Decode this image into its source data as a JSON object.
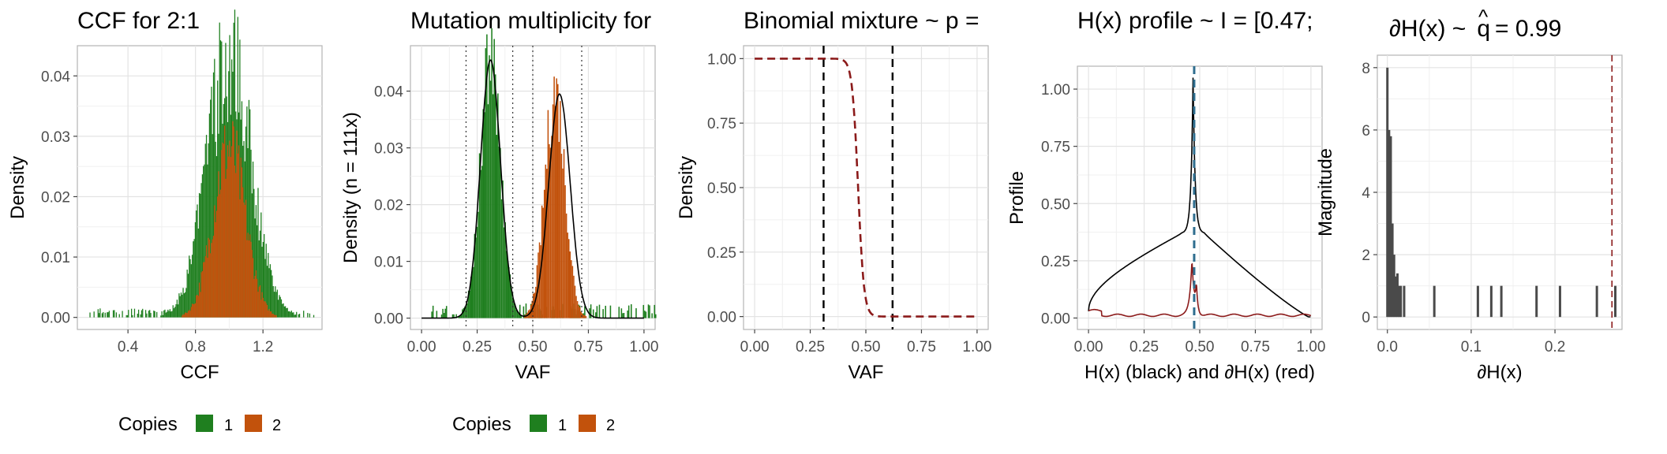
{
  "colors": {
    "copies_1": "#1f7f1f",
    "copies_2": "#c2520c",
    "dashed_red": "#8b1a1a",
    "dashed_blue": "#2f6e8f",
    "bars_dark": "#4a4a4a"
  },
  "legend": {
    "title": "Copies",
    "labels": [
      "1",
      "2"
    ]
  },
  "chart_data": [
    {
      "type": "bar",
      "title": "CCF for 2:1",
      "xlabel": "CCF",
      "ylabel": "Density",
      "xlim": [
        0.1,
        1.55
      ],
      "ylim": [
        -0.002,
        0.045
      ],
      "x_ticks": [
        0.4,
        0.8,
        1.2
      ],
      "x_tick_labels": [
        "0.4",
        "0.8",
        "1.2"
      ],
      "y_ticks": [
        0,
        0.01,
        0.02,
        0.03,
        0.04
      ],
      "y_tick_labels": [
        "0.00",
        "0.01",
        "0.02",
        "0.03",
        "0.04"
      ],
      "grid": true,
      "legend": "bottom",
      "series": [
        {
          "name": "1",
          "center": 1.0,
          "sd": 0.13,
          "peak": 0.043,
          "tail_from": 0.17,
          "tail_to": 1.5,
          "tail_level": 0.0012
        },
        {
          "name": "2",
          "center": 1.0,
          "sd": 0.095,
          "peak": 0.028
        }
      ]
    },
    {
      "type": "bar",
      "title": "Mutation multiplicity for",
      "xlabel": "VAF",
      "ylabel": "Density (n = 111x)",
      "xlim": [
        -0.05,
        1.05
      ],
      "ylim": [
        -0.002,
        0.048
      ],
      "x_ticks": [
        0,
        0.25,
        0.5,
        0.75,
        1.0
      ],
      "x_tick_labels": [
        "0.00",
        "0.25",
        "0.50",
        "0.75",
        "1.00"
      ],
      "y_ticks": [
        0,
        0.01,
        0.02,
        0.03,
        0.04
      ],
      "y_tick_labels": [
        "0.00",
        "0.01",
        "0.02",
        "0.03",
        "0.04"
      ],
      "grid": true,
      "legend": "bottom",
      "vlines_dotted": [
        0.2,
        0.41,
        0.5,
        0.72
      ],
      "series": [
        {
          "name": "1",
          "center": 0.31,
          "sd": 0.045,
          "peak": 0.046,
          "tail_from": 0.04,
          "tail_level": 0.002
        },
        {
          "name": "2",
          "center": 0.6,
          "sd": 0.045,
          "peak": 0.04
        }
      ],
      "fit": [
        {
          "mu": 0.31,
          "sd": 0.045,
          "peak": 0.0455
        },
        {
          "mu": 0.62,
          "sd": 0.048,
          "peak": 0.0395
        }
      ]
    },
    {
      "type": "line",
      "title": "Binomial mixture ~ p =",
      "xlabel": "VAF",
      "ylabel": "Density",
      "xlim": [
        -0.05,
        1.05
      ],
      "ylim": [
        -0.05,
        1.05
      ],
      "x_ticks": [
        0,
        0.25,
        0.5,
        0.75,
        1.0
      ],
      "x_tick_labels": [
        "0.00",
        "0.25",
        "0.50",
        "0.75",
        "1.00"
      ],
      "y_ticks": [
        0,
        0.25,
        0.5,
        0.75,
        1.0
      ],
      "y_tick_labels": [
        "0.00",
        "0.25",
        "0.50",
        "0.75",
        "1.00"
      ],
      "grid": true,
      "vlines_dashed": [
        0.31,
        0.62
      ],
      "sigmoid": {
        "mid": 0.465,
        "steep": 75
      }
    },
    {
      "type": "line",
      "title": "H(x) profile ~ I = [0.47;",
      "xlabel": "H(x) (black) and ∂H(x) (red)",
      "ylabel": "Profile",
      "xlim": [
        -0.05,
        1.05
      ],
      "ylim": [
        -0.05,
        1.1
      ],
      "x_ticks": [
        0,
        0.25,
        0.5,
        0.75,
        1.0
      ],
      "x_tick_labels": [
        "0.00",
        "0.25",
        "0.50",
        "0.75",
        "1.00"
      ],
      "y_ticks": [
        0,
        0.25,
        0.5,
        0.75,
        1.0
      ],
      "y_tick_labels": [
        "0.00",
        "0.25",
        "0.50",
        "0.75",
        "1.00"
      ],
      "grid": true,
      "vline_blue": 0.475,
      "peak_x": 0.47,
      "peak_y": 1.05,
      "plateau_y": 0.37,
      "red_peak_y": 0.26
    },
    {
      "type": "bar",
      "title_prefix": "∂H(x) ~",
      "title_q": "q",
      "title_hat": "^",
      "title_value": "= 0.99",
      "xlabel": "∂H(x)",
      "ylabel": "Magnitude",
      "xlim": [
        -0.012,
        0.28
      ],
      "ylim": [
        -0.4,
        8.4
      ],
      "x_ticks": [
        0,
        0.1,
        0.2
      ],
      "x_tick_labels": [
        "0.0",
        "0.1",
        "0.2"
      ],
      "y_ticks": [
        0,
        2,
        4,
        6,
        8
      ],
      "y_tick_labels": [
        "0",
        "2",
        "4",
        "6",
        "8"
      ],
      "grid": true,
      "vline_dashed": 0.268,
      "bars": [
        {
          "x": 0.0,
          "y": 8
        },
        {
          "x": 0.002,
          "y": 6
        },
        {
          "x": 0.004,
          "y": 5.8
        },
        {
          "x": 0.006,
          "y": 3
        },
        {
          "x": 0.008,
          "y": 2
        },
        {
          "x": 0.01,
          "y": 1.3
        },
        {
          "x": 0.012,
          "y": 1.4
        },
        {
          "x": 0.014,
          "y": 1
        },
        {
          "x": 0.016,
          "y": 1
        },
        {
          "x": 0.02,
          "y": 1
        },
        {
          "x": 0.056,
          "y": 1
        },
        {
          "x": 0.108,
          "y": 1
        },
        {
          "x": 0.124,
          "y": 1
        },
        {
          "x": 0.136,
          "y": 1
        },
        {
          "x": 0.178,
          "y": 1
        },
        {
          "x": 0.206,
          "y": 1
        },
        {
          "x": 0.25,
          "y": 1
        },
        {
          "x": 0.272,
          "y": 1
        }
      ]
    }
  ]
}
